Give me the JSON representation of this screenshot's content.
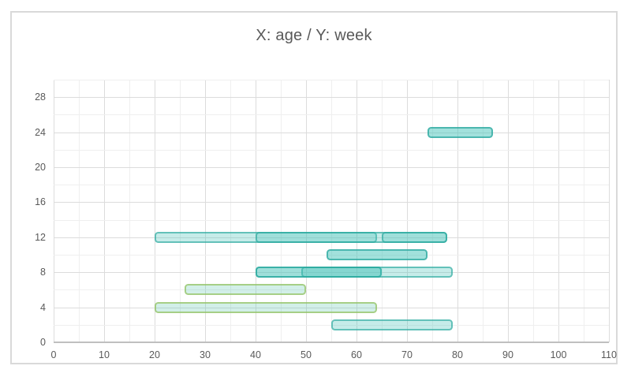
{
  "title": "X: age / Y: week",
  "colors": {
    "teal_fill": "#4dc5bb",
    "teal_stroke": "#26a69d",
    "green_stroke": "#b3d98c",
    "grid_major": "#dcdcdc",
    "grid_minor": "#efefef",
    "axis_line": "#bfbfbf",
    "text": "#595959",
    "card_border": "#d9d9d9"
  },
  "chart_data": {
    "type": "bar",
    "orientation": "horizontal",
    "title": "X: age / Y: week",
    "xlabel": "age",
    "ylabel": "week",
    "x_axis": {
      "min": 0,
      "max": 110,
      "tick_step": 10,
      "minor_grid_step": 5,
      "ticks": [
        0,
        10,
        20,
        30,
        40,
        50,
        60,
        70,
        80,
        90,
        100,
        110
      ]
    },
    "y_axis": {
      "min": 0,
      "max": 30,
      "label_step": 4,
      "grid_step": 2,
      "ticks": [
        0,
        4,
        8,
        12,
        16,
        20,
        24,
        28
      ]
    },
    "grid": true,
    "legend": false,
    "bars": [
      {
        "week": 24,
        "start": 74,
        "end": 87,
        "series": "teal",
        "shade": "medium"
      },
      {
        "week": 12,
        "start": 20,
        "end": 64,
        "series": "teal",
        "shade": "light"
      },
      {
        "week": 12,
        "start": 40,
        "end": 78,
        "series": "teal",
        "shade": "light"
      },
      {
        "week": 12,
        "start": 65,
        "end": 78,
        "series": "teal",
        "shade": "light"
      },
      {
        "week": 10,
        "start": 54,
        "end": 74,
        "series": "teal",
        "shade": "medium"
      },
      {
        "week": 8,
        "start": 40,
        "end": 65,
        "series": "teal",
        "shade": "light"
      },
      {
        "week": 8,
        "start": 49,
        "end": 65,
        "series": "teal",
        "shade": "light"
      },
      {
        "week": 8,
        "start": 40,
        "end": 79,
        "series": "teal",
        "shade": "light"
      },
      {
        "week": 6,
        "start": 26,
        "end": 50,
        "series": "green",
        "shade": "light"
      },
      {
        "week": 4,
        "start": 20,
        "end": 64,
        "series": "green",
        "shade": "light"
      },
      {
        "week": 2,
        "start": 55,
        "end": 79,
        "series": "teal",
        "shade": "light"
      }
    ]
  }
}
